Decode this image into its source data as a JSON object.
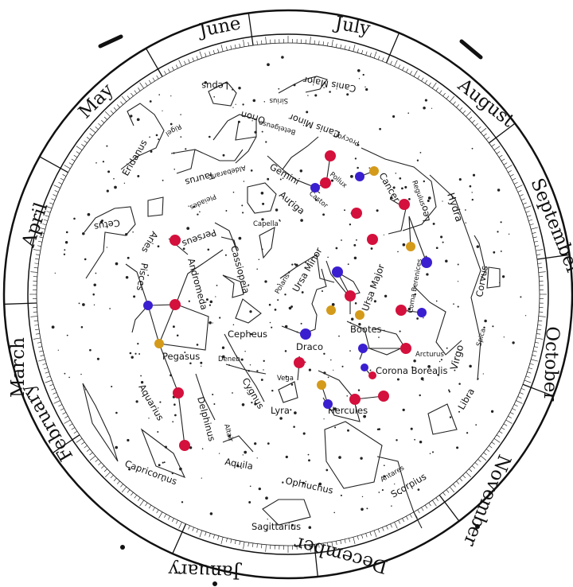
{
  "months": [
    "June",
    "July",
    "August",
    "September",
    "October",
    "November",
    "December",
    "January",
    "February",
    "March",
    "April",
    "May"
  ],
  "constellations": {
    "lepus": "Lepus",
    "canis_major": "Canis Major",
    "sirius": "Sirius",
    "orion": "Orion",
    "rigel": "Rigel",
    "betelgeuse": "Betelgeuse",
    "canis_minor": "Canis Minor",
    "procyon": "Procyon",
    "eridanus": "Eridanus",
    "taurus": "Taurus",
    "aldebaran": "Aldebaran",
    "pleiades": "Pleiades",
    "gemini": "Gemini",
    "pollux": "Pollux",
    "castor": "Castor",
    "cancer": "Cancer",
    "auriga": "Auriga",
    "capella": "Capella",
    "leo": "Leo",
    "regulus": "Regulus",
    "hydra": "Hydra",
    "cetus": "Cetus",
    "perseus": "Perseus",
    "aries": "Aries",
    "pisces": "Pisces",
    "andromeda": "Andromeda",
    "cassiopeia": "Cassiopeia",
    "polaris": "Polaris",
    "ursa_minor": "Ursa Minor",
    "ursa_major": "Ursa Major",
    "coma_berenices": "Coma Berenices",
    "corvus": "Corvus",
    "spica": "Spica",
    "virgo": "Virgo",
    "cepheus": "Cepheus",
    "draco": "Draco",
    "bootes": "Bootes",
    "arcturus": "Arcturus",
    "corona_borealis": "Corona Borealis",
    "deneb": "Deneb",
    "pegasus": "Pegasus",
    "vega": "Vega",
    "lyra": "Lyra",
    "cygnus": "Cygnus",
    "hercules": "Hercules",
    "libra": "Libra",
    "aquarius": "Aquarius",
    "delphinus": "Delphinus",
    "altair": "Altair",
    "aquila": "Aquila",
    "capricornus": "Capricornus",
    "ophiuchus": "Ophiuchus",
    "antares": "Antares",
    "scorpius": "Scorpius",
    "sagittarius": "Sagittarius"
  },
  "colors": {
    "red": "#d4103c",
    "blue": "#3a1fd0",
    "gold": "#d49a1a",
    "ink": "#111111"
  }
}
